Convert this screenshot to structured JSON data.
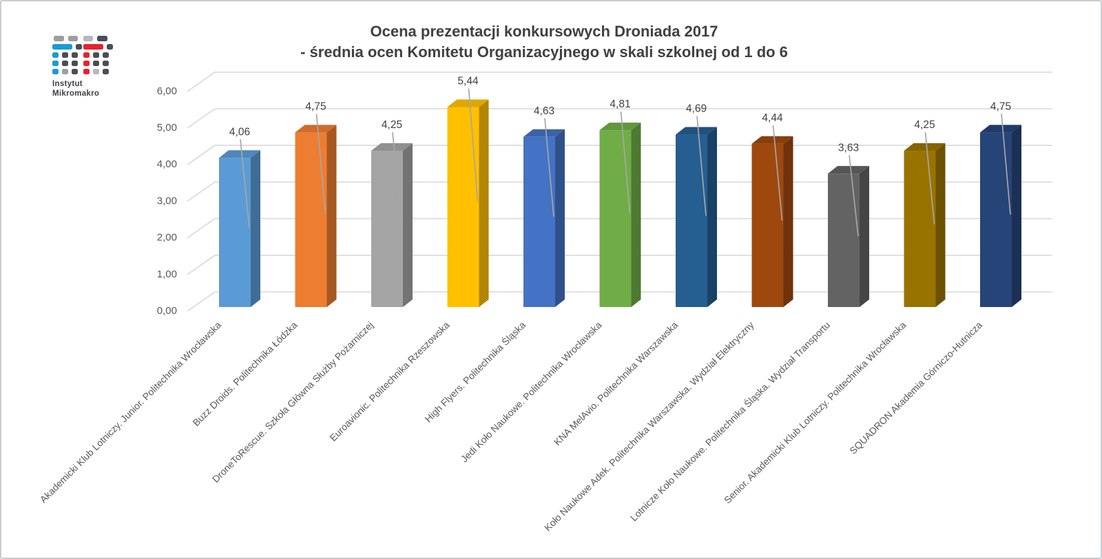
{
  "header": {
    "title_line1": "Ocena prezentacji konkursowych Droniada 2017",
    "title_line2": "- średnia ocen Komitetu Organizacyjnego w skali szkolnej od 1 do 6"
  },
  "logo": {
    "line1": "Instytut",
    "line2": "Mikromakro",
    "colors": {
      "blue": "#189cd8",
      "red": "#e8212e",
      "dark": "#4a4e54",
      "gray": "#9b9ea3",
      "light": "#b5b8bc"
    }
  },
  "chart_data": {
    "type": "bar",
    "style": "3d-column",
    "title": "Ocena prezentacji konkursowych Droniada 2017 - średnia ocen Komitetu Organizacyjnego w skali szkolnej od 1 do 6",
    "xlabel": "",
    "ylabel": "",
    "ylim": [
      0,
      6
    ],
    "ytick_step": 1,
    "ytick_labels": [
      "0,00",
      "1,00",
      "2,00",
      "3,00",
      "4,00",
      "5,00",
      "6,00"
    ],
    "grid": true,
    "legend": "none",
    "categories": [
      "Akademicki Klub Lotniczy. Junior. Politechnika Wrocławska",
      "Buzz Droids. Politechnika Łódzka",
      "DroneToRescue. Szkoła Główna Służby Pożarniczej",
      "Euroavionic. Politechnika Rzeszowska",
      "High Flyers. Politechnika Śląska",
      "Jedi Koło Naukowe. Politechnika Wrocławska",
      "KNA MelAvio. Politechnika Warszawska",
      "Koło Naukowe Adek. Politechnika Warszawska. Wydział Elektryczny",
      "Lotnicze Koło Naukowe. Politechnika Śląska. Wydział Transportu",
      "Senior. Akademicki Klub Lotniczy. Politechnika Wrocławska",
      "SQUADRON Akademia Górniczo-Hutnicza"
    ],
    "values": [
      4.06,
      4.75,
      4.25,
      5.44,
      4.63,
      4.81,
      4.69,
      4.44,
      3.63,
      4.25,
      4.75
    ],
    "value_labels": [
      "4,06",
      "4,75",
      "4,25",
      "5,44",
      "4,63",
      "4,81",
      "4,69",
      "4,44",
      "3,63",
      "4,25",
      "4,75"
    ],
    "bar_colors": [
      "#5B9BD5",
      "#ED7D31",
      "#A5A5A5",
      "#FFC000",
      "#4472C4",
      "#70AD47",
      "#255E91",
      "#9E480E",
      "#636363",
      "#997300",
      "#264478"
    ],
    "colors": {
      "gridline": "#D9D9D9",
      "axis_text": "#595959",
      "data_label": "#404040",
      "leader_line": "#A6A6A6",
      "title_text": "#404040"
    }
  }
}
